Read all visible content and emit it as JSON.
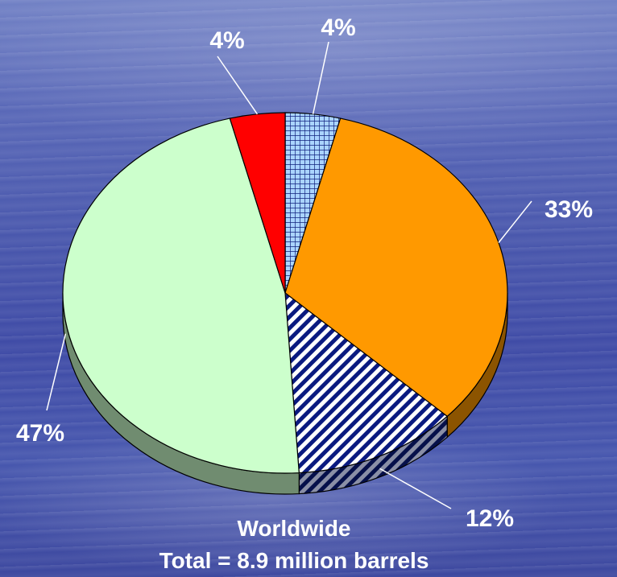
{
  "chart_data": {
    "type": "pie",
    "title": "",
    "caption_line1": "Worldwide",
    "caption_line2": "Total = 8.9 million barrels",
    "slices": [
      {
        "value": 4,
        "label": "4%",
        "color": "#aad4ff",
        "pattern": "grid"
      },
      {
        "value": 33,
        "label": "33%",
        "color": "#ff9900",
        "pattern": "none"
      },
      {
        "value": 12,
        "label": "12%",
        "color": "#0a1a80",
        "pattern": "diagonal-stripes"
      },
      {
        "value": 47,
        "label": "47%",
        "color": "#ccffcc",
        "pattern": "none"
      },
      {
        "value": 4,
        "label": "4%",
        "color": "#ff0000",
        "pattern": "none"
      }
    ],
    "start_angle": "12 o'clock, clockwise",
    "style": "3D tilted pie with leader lines"
  }
}
